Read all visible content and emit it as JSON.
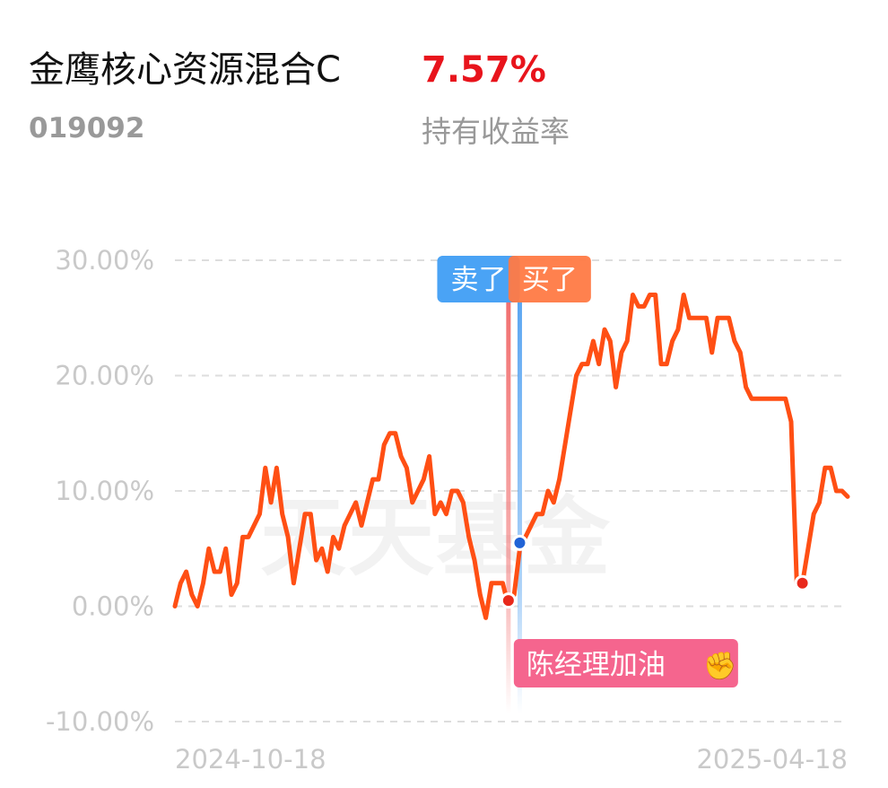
{
  "header": {
    "fund_name": "金鹰核心资源混合C",
    "return_value": "7.57%",
    "fund_code": "019092",
    "return_label": "持有收益率"
  },
  "watermark": "天天基金",
  "colors": {
    "line": "#ff4f14",
    "grid": "#dddddd",
    "sell_tag": "#4aa3f5",
    "buy_tag": "#ff7a45",
    "comment_tag": "#f5658e",
    "sell_marker": "#2163d6",
    "buy_marker": "#e8291c",
    "return_text": "#e8141c"
  },
  "chart_data": {
    "type": "line",
    "ylim": [
      -10,
      30
    ],
    "yticks": [
      30,
      20,
      10,
      0,
      -10
    ],
    "ytick_labels": [
      "30.00%",
      "20.00%",
      "10.00%",
      "0.00%",
      "-10.00%"
    ],
    "x_labels": [
      "2024-10-18",
      "2025-04-18"
    ],
    "grid": true,
    "series": [
      {
        "values": [
          0,
          2,
          3,
          1,
          0,
          2,
          5,
          3,
          3,
          5,
          1,
          2,
          6,
          6,
          7,
          8,
          12,
          9,
          12,
          8,
          6,
          2,
          5,
          8,
          8,
          4,
          5,
          3,
          6,
          5,
          7,
          8,
          9,
          7,
          9,
          11,
          11,
          14,
          15,
          15,
          13,
          12,
          9,
          10,
          11,
          13,
          8,
          9,
          8,
          10,
          10,
          9,
          6,
          4,
          1,
          -1,
          2,
          2,
          2,
          0,
          1,
          5,
          6,
          7,
          8,
          8,
          10,
          9,
          11,
          14,
          17,
          20,
          21,
          21,
          23,
          21,
          24,
          23,
          19,
          22,
          23,
          27,
          26,
          26,
          27,
          27,
          21,
          21,
          23,
          24,
          27,
          25,
          25,
          25,
          25,
          22,
          25,
          25,
          25,
          23,
          22,
          19,
          18,
          18,
          18,
          18,
          18,
          18,
          18,
          16,
          2,
          2,
          5,
          8,
          9,
          12,
          12,
          10,
          10,
          9.5
        ]
      }
    ],
    "markers": [
      {
        "index": 59,
        "value": 0.5,
        "type": "buy"
      },
      {
        "index": 61,
        "value": 5.5,
        "type": "sell"
      },
      {
        "index": 111,
        "value": 2.0,
        "type": "buy"
      }
    ],
    "annotations": {
      "sell_label": "卖了",
      "buy_label": "买了",
      "comment": "陈经理加油",
      "comment_emoji": "✊"
    }
  }
}
